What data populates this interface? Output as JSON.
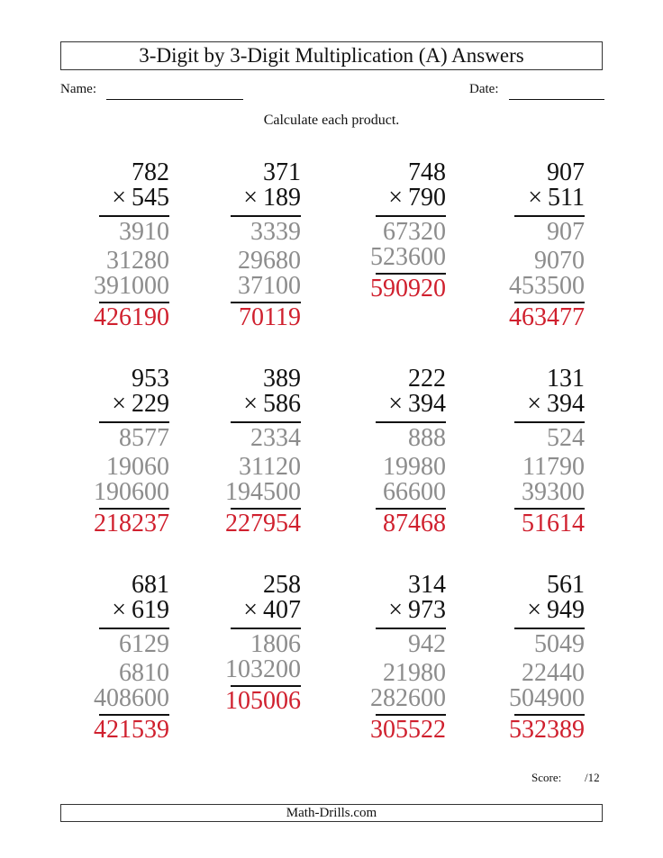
{
  "header": {
    "title": "3-Digit by 3-Digit Multiplication (A) Answers",
    "name_label": "Name:",
    "date_label": "Date:",
    "instructions": "Calculate each product."
  },
  "operator": "×",
  "colors": {
    "partials": "#8c8c8c",
    "answer": "#d0202e"
  },
  "problems": [
    {
      "top": "782",
      "multiplier": "545",
      "partials": [
        "3910",
        "31280",
        "391000"
      ],
      "answer": "426190"
    },
    {
      "top": "371",
      "multiplier": "189",
      "partials": [
        "3339",
        "29680",
        "37100"
      ],
      "answer": "70119"
    },
    {
      "top": "748",
      "multiplier": "790",
      "partials": [
        "67320",
        "523600"
      ],
      "answer": "590920"
    },
    {
      "top": "907",
      "multiplier": "511",
      "partials": [
        "907",
        "9070",
        "453500"
      ],
      "answer": "463477"
    },
    {
      "top": "953",
      "multiplier": "229",
      "partials": [
        "8577",
        "19060",
        "190600"
      ],
      "answer": "218237"
    },
    {
      "top": "389",
      "multiplier": "586",
      "partials": [
        "2334",
        "31120",
        "194500"
      ],
      "answer": "227954"
    },
    {
      "top": "222",
      "multiplier": "394",
      "partials": [
        "888",
        "19980",
        "66600"
      ],
      "answer": "87468"
    },
    {
      "top": "131",
      "multiplier": "394",
      "partials": [
        "524",
        "11790",
        "39300"
      ],
      "answer": "51614"
    },
    {
      "top": "681",
      "multiplier": "619",
      "partials": [
        "6129",
        "6810",
        "408600"
      ],
      "answer": "421539"
    },
    {
      "top": "258",
      "multiplier": "407",
      "partials": [
        "1806",
        "103200"
      ],
      "answer": "105006"
    },
    {
      "top": "314",
      "multiplier": "973",
      "partials": [
        "942",
        "21980",
        "282600"
      ],
      "answer": "305522"
    },
    {
      "top": "561",
      "multiplier": "949",
      "partials": [
        "5049",
        "22440",
        "504900"
      ],
      "answer": "532389"
    }
  ],
  "score": {
    "label": "Score:",
    "total": "/12"
  },
  "footer": {
    "text": "Math-Drills.com"
  }
}
